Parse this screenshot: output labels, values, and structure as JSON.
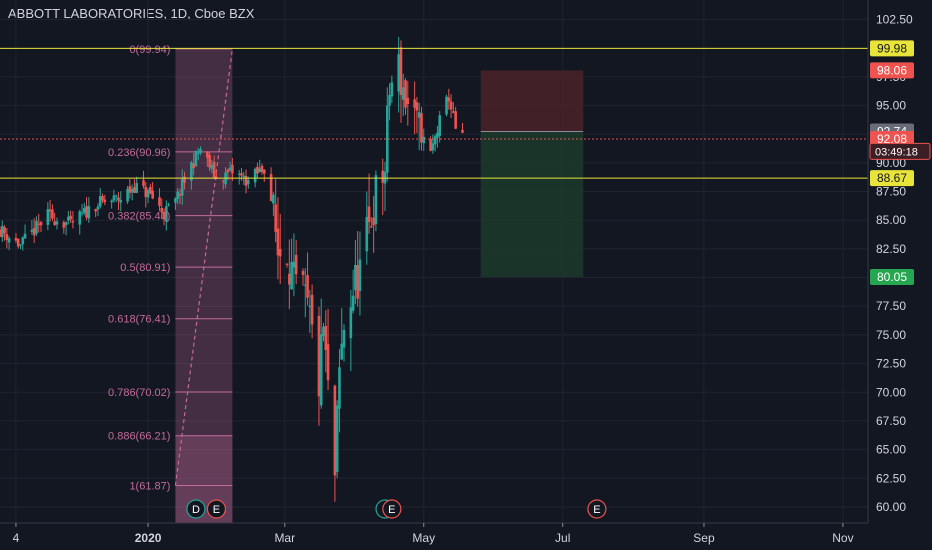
{
  "header": {
    "title": "ABBOTT LABORATORIES, 1D, Cboe BZX"
  },
  "colors": {
    "background": "#131722",
    "grid": "#1f2430",
    "up": "#26a69a",
    "down": "#ef5350",
    "fib": "#c46a9a",
    "hline": "#e8e43a",
    "axis_text": "#d1d4dc",
    "stop_zone": "#4a2328",
    "target_zone": "#1d3a2c",
    "tag_gray": "#6a6d78",
    "tag_green": "#26a650"
  },
  "chart_data": {
    "type": "candlestick",
    "symbol": "ABBOTT LABORATORIES",
    "interval": "1D",
    "exchange": "Cboe BZX",
    "ylim": [
      58.6,
      104.2
    ],
    "y_ticks": [
      "60.00",
      "62.50",
      "65.00",
      "67.50",
      "70.00",
      "72.50",
      "75.00",
      "77.50",
      "80.00",
      "82.50",
      "85.00",
      "87.50",
      "90.00",
      "92.50",
      "95.00",
      "97.50",
      "100.00",
      "102.50"
    ],
    "x_ticks": [
      {
        "label": "4",
        "date": "2019-11-04"
      },
      {
        "label": "2020",
        "date": "2020-01-01"
      },
      {
        "label": "Mar",
        "date": "2020-03-01"
      },
      {
        "label": "May",
        "date": "2020-05-01"
      },
      {
        "label": "Jul",
        "date": "2020-07-01"
      },
      {
        "label": "Sep",
        "date": "2020-09-01"
      },
      {
        "label": "Nov",
        "date": "2020-11-01"
      }
    ],
    "x_range": [
      "2019-10-28",
      "2020-11-12"
    ],
    "price_path": [
      [
        "2019-10-28",
        84.2
      ],
      [
        "2019-11-06",
        82.8
      ],
      [
        "2019-11-18",
        85.4
      ],
      [
        "2019-11-28",
        84.6
      ],
      [
        "2019-12-09",
        86.4
      ],
      [
        "2019-12-20",
        86.9
      ],
      [
        "2019-12-26",
        88.0
      ],
      [
        "2020-01-02",
        87.2
      ],
      [
        "2020-01-08",
        85.6
      ],
      [
        "2020-01-13",
        86.6
      ],
      [
        "2020-01-20",
        89.8
      ],
      [
        "2020-01-24",
        91.2
      ],
      [
        "2020-01-31",
        88.6
      ],
      [
        "2020-02-07",
        89.2
      ],
      [
        "2020-02-14",
        88.4
      ],
      [
        "2020-02-21",
        89.6
      ],
      [
        "2020-02-24",
        86.8
      ],
      [
        "2020-02-27",
        82.3
      ],
      [
        "2020-03-02",
        82.8
      ],
      [
        "2020-03-05",
        79.2
      ],
      [
        "2020-03-09",
        78.4
      ],
      [
        "2020-03-12",
        76.2
      ],
      [
        "2020-03-16",
        70.8
      ],
      [
        "2020-03-18",
        75.5
      ],
      [
        "2020-03-20",
        69.8
      ],
      [
        "2020-03-23",
        62.5
      ],
      [
        "2020-03-25",
        71.5
      ],
      [
        "2020-03-27",
        75.8
      ],
      [
        "2020-03-31",
        78.9
      ],
      [
        "2020-04-03",
        80.6
      ],
      [
        "2020-04-07",
        84.2
      ],
      [
        "2020-04-09",
        86.5
      ],
      [
        "2020-04-14",
        89.5
      ],
      [
        "2020-04-16",
        96.4
      ],
      [
        "2020-04-20",
        98.2
      ],
      [
        "2020-04-23",
        95.6
      ],
      [
        "2020-04-27",
        93.2
      ],
      [
        "2020-04-30",
        92.3
      ],
      [
        "2020-05-04",
        90.8
      ],
      [
        "2020-05-08",
        93.6
      ],
      [
        "2020-05-12",
        95.8
      ],
      [
        "2020-05-15",
        92.9
      ],
      [
        "2020-05-18",
        92.08
      ]
    ],
    "fibonacci": {
      "start_date": "2020-01-13",
      "end_date": "2020-02-07",
      "levels": [
        {
          "label": "0(99.94)",
          "value": 99.94
        },
        {
          "label": "0.236(90.96)",
          "value": 90.96
        },
        {
          "label": "0.382(85.40)",
          "value": 85.4
        },
        {
          "label": "0.5(80.91)",
          "value": 80.91
        },
        {
          "label": "0.618(76.41)",
          "value": 76.41
        },
        {
          "label": "0.786(70.02)",
          "value": 70.02
        },
        {
          "label": "0.886(66.21)",
          "value": 66.21
        },
        {
          "label": "1(61.87)",
          "value": 61.87
        }
      ],
      "trend_from": {
        "date": "2020-01-13",
        "value": 61.87
      },
      "trend_to": {
        "date": "2020-02-07",
        "value": 99.94
      }
    },
    "horizontal_lines": [
      99.98,
      88.67
    ],
    "current_price_line": 92.08,
    "position": {
      "type": "long",
      "start_date": "2020-05-26",
      "end_date": "2020-07-10",
      "entry": 92.74,
      "stop": 98.06,
      "target": 80.05
    },
    "price_tags": [
      {
        "value": 99.98,
        "label": "99.98",
        "style": "yellow"
      },
      {
        "value": 98.06,
        "label": "98.06",
        "style": "red"
      },
      {
        "value": 92.74,
        "label": "92.74",
        "style": "gray"
      },
      {
        "value": 92.08,
        "label": "92.08",
        "style": "red"
      },
      {
        "value": 88.67,
        "label": "88.67",
        "style": "yellow"
      },
      {
        "value": 80.05,
        "label": "80.05",
        "style": "green"
      }
    ],
    "countdown": {
      "value": 91.0,
      "label": "03:49:18"
    },
    "events": [
      {
        "date": "2020-01-22",
        "label": "D",
        "style": "green"
      },
      {
        "date": "2020-01-31",
        "label": "E",
        "style": "red"
      },
      {
        "date": "2020-04-14",
        "label": "",
        "style": "green"
      },
      {
        "date": "2020-04-17",
        "label": "E",
        "style": "red"
      },
      {
        "date": "2020-07-16",
        "label": "E",
        "style": "red"
      }
    ]
  }
}
